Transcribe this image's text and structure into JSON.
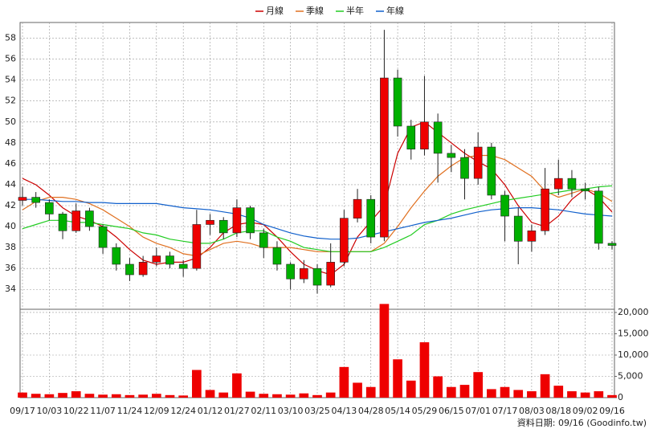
{
  "chart_data": {
    "type": "candlestick",
    "categories": [
      "09/17",
      null,
      "10/03",
      null,
      "10/22",
      null,
      "11/07",
      null,
      "11/24",
      null,
      "12/09",
      null,
      "12/24",
      null,
      "01/12",
      null,
      "01/27",
      null,
      "02/11",
      null,
      "03/10",
      null,
      "03/25",
      null,
      "04/13",
      null,
      "04/28",
      null,
      "05/14",
      null,
      "05/29",
      null,
      "06/15",
      null,
      "07/01",
      null,
      "07/17",
      null,
      "08/03",
      null,
      "08/18",
      null,
      "09/02",
      null,
      "09/16"
    ],
    "open": [
      42.5,
      42.8,
      42.3,
      41.2,
      39.6,
      41.5,
      40.0,
      38.0,
      36.4,
      35.4,
      36.6,
      37.2,
      36.4,
      36.0,
      40.2,
      40.6,
      39.4,
      41.8,
      39.4,
      38.0,
      36.4,
      35.0,
      36.0,
      34.4,
      36.6,
      40.8,
      42.6,
      39.0,
      54.2,
      49.6,
      47.4,
      50.0,
      47.0,
      46.6,
      44.6,
      47.6,
      43.0,
      41.0,
      38.6,
      39.6,
      43.6,
      44.6,
      43.6,
      43.4,
      38.4
    ],
    "high": [
      43.8,
      43.3,
      42.6,
      41.4,
      42.2,
      41.8,
      40.2,
      38.4,
      37.0,
      37.2,
      38.0,
      37.6,
      36.8,
      41.6,
      41.2,
      40.9,
      42.6,
      42.0,
      39.8,
      38.6,
      36.6,
      36.8,
      36.4,
      38.4,
      41.6,
      43.6,
      43.0,
      58.8,
      55.0,
      50.2,
      54.4,
      50.8,
      47.8,
      47.4,
      49.0,
      48.0,
      43.4,
      41.8,
      40.2,
      45.6,
      46.4,
      45.4,
      44.2,
      43.8,
      38.6
    ],
    "low": [
      42.0,
      41.8,
      40.6,
      38.8,
      39.4,
      39.6,
      37.4,
      35.8,
      34.8,
      35.2,
      36.2,
      36.0,
      35.2,
      35.8,
      39.2,
      38.8,
      39.0,
      38.8,
      37.0,
      35.8,
      34.0,
      34.6,
      33.6,
      34.2,
      36.2,
      40.4,
      38.4,
      38.6,
      48.6,
      46.4,
      46.8,
      44.2,
      45.2,
      42.6,
      44.0,
      42.6,
      38.6,
      36.4,
      37.6,
      39.2,
      43.0,
      42.8,
      42.6,
      37.8,
      37.8
    ],
    "close": [
      42.8,
      42.3,
      41.2,
      39.6,
      41.5,
      40.0,
      38.0,
      36.4,
      35.4,
      36.6,
      37.2,
      36.4,
      36.0,
      40.2,
      40.6,
      39.4,
      41.8,
      39.4,
      38.0,
      36.4,
      35.0,
      36.0,
      34.4,
      36.6,
      40.8,
      42.6,
      39.0,
      54.2,
      49.6,
      47.4,
      50.0,
      47.0,
      46.6,
      44.6,
      47.6,
      43.0,
      41.0,
      38.6,
      39.6,
      43.6,
      44.6,
      43.6,
      43.4,
      38.4,
      38.2
    ],
    "up_color": "#ee0000",
    "down_color": "#00b000",
    "ylim": [
      32.1,
      59.5
    ],
    "yticks": [
      34,
      36,
      38,
      40,
      42,
      44,
      46,
      48,
      50,
      52,
      54,
      56,
      58
    ],
    "grid": true,
    "series": [
      {
        "name": "月線",
        "color": "#cc0000",
        "values": [
          44.6,
          44.0,
          43.0,
          41.8,
          41.0,
          40.6,
          40.0,
          39.0,
          37.8,
          36.8,
          36.4,
          36.6,
          36.6,
          37.0,
          38.0,
          39.4,
          40.2,
          40.4,
          40.2,
          39.0,
          37.6,
          36.4,
          35.8,
          35.4,
          36.4,
          39.0,
          40.5,
          42.0,
          47.0,
          49.5,
          50.0,
          49.0,
          48.0,
          47.0,
          46.2,
          45.5,
          44.0,
          42.0,
          40.4,
          40.0,
          41.0,
          42.6,
          43.6,
          42.8,
          41.4
        ]
      },
      {
        "name": "季線",
        "color": "#e07020",
        "values": [
          41.6,
          42.4,
          42.8,
          42.8,
          42.6,
          42.2,
          41.6,
          40.8,
          40.0,
          39.0,
          38.4,
          38.0,
          37.4,
          37.2,
          37.8,
          38.4,
          38.6,
          38.4,
          38.0,
          38.0,
          38.0,
          37.8,
          37.6,
          37.6,
          37.6,
          37.6,
          37.6,
          38.4,
          40.0,
          41.8,
          43.4,
          44.8,
          45.8,
          46.6,
          46.8,
          46.8,
          46.4,
          45.6,
          44.8,
          43.4,
          42.8,
          43.2,
          43.6,
          43.2,
          42.4
        ]
      },
      {
        "name": "半年",
        "color": "#22cc22",
        "values": [
          39.8,
          40.2,
          40.6,
          40.6,
          40.4,
          40.4,
          40.2,
          40.0,
          39.8,
          39.4,
          39.2,
          38.8,
          38.6,
          38.4,
          38.4,
          38.8,
          39.4,
          39.6,
          39.6,
          39.0,
          38.6,
          38.0,
          37.8,
          37.6,
          37.6,
          37.6,
          37.6,
          38.0,
          38.6,
          39.2,
          40.2,
          40.6,
          41.2,
          41.6,
          41.9,
          42.2,
          42.5,
          42.7,
          42.9,
          43.1,
          43.3,
          43.5,
          43.6,
          43.8,
          43.9
        ]
      },
      {
        "name": "年線",
        "color": "#1060cc",
        "values": [
          42.6,
          42.6,
          42.5,
          42.4,
          42.4,
          42.3,
          42.3,
          42.2,
          42.2,
          42.2,
          42.2,
          42.0,
          41.8,
          41.7,
          41.6,
          41.4,
          41.2,
          40.8,
          40.2,
          39.8,
          39.4,
          39.1,
          38.9,
          38.8,
          38.8,
          38.9,
          39.2,
          39.5,
          39.8,
          40.1,
          40.4,
          40.6,
          40.8,
          41.1,
          41.4,
          41.6,
          41.7,
          41.8,
          41.8,
          41.7,
          41.6,
          41.4,
          41.2,
          41.1,
          41.0
        ]
      }
    ],
    "volume": {
      "color": "#ee0000",
      "values": [
        1200,
        900,
        800,
        1100,
        1500,
        900,
        700,
        800,
        600,
        700,
        900,
        600,
        500,
        6500,
        1800,
        1200,
        5700,
        1400,
        900,
        800,
        700,
        1000,
        600,
        1200,
        7200,
        3500,
        2500,
        22000,
        9000,
        4000,
        13000,
        5000,
        2500,
        3000,
        6000,
        2000,
        2500,
        1800,
        1500,
        5500,
        2800,
        1500,
        1200,
        1500,
        600
      ],
      "ylim": [
        0,
        20750
      ],
      "yticks": [
        0,
        {
          "value": 5000,
          "label": "5,000"
        },
        {
          "value": 10000,
          "label": "10,000"
        },
        {
          "value": 15000,
          "label": "15,000"
        },
        {
          "value": 20000,
          "label": "20,000"
        }
      ]
    },
    "footnote": "資料日期: 09/16  (Goodinfo.tw)"
  }
}
